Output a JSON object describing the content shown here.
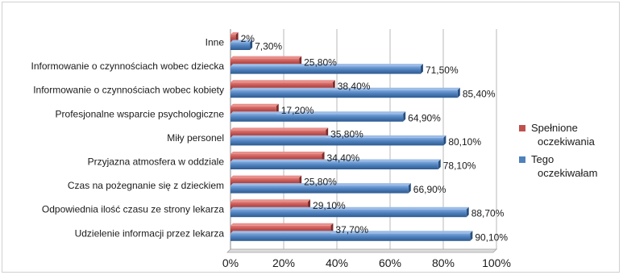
{
  "chart_data": {
    "type": "bar",
    "orientation": "horizontal",
    "categories": [
      "Inne",
      "Informowanie o czynnościach wobec dziecka",
      "Informowanie o czynnościach wobec kobiety",
      "Profesjonalne wsparcie psychologiczne",
      "Miły personel",
      "Przyjazna atmosfera w oddziale",
      "Czas na pożegnanie się z dzieckiem",
      "Odpowiednia ilość czasu ze strony lekarza",
      "Udzielenie informacji przez lekarza"
    ],
    "series": [
      {
        "name": "Spełnione oczekiwania",
        "legend_lines": [
          "Spełnione",
          "oczekiwania"
        ],
        "color": "#c0504d",
        "values": [
          2,
          25.8,
          38.4,
          17.2,
          35.8,
          34.4,
          25.8,
          29.1,
          37.7
        ],
        "labels": [
          "2%",
          "25,80%",
          "38,40%",
          "17,20%",
          "35,80%",
          "34,40%",
          "25,80%",
          "29,10%",
          "37,70%"
        ]
      },
      {
        "name": "Tego oczekiwałam",
        "legend_lines": [
          "Tego",
          "oczekiwałam"
        ],
        "color": "#4f81bd",
        "values": [
          7.3,
          71.5,
          85.4,
          64.9,
          80.1,
          78.1,
          66.9,
          88.7,
          90.1
        ],
        "labels": [
          "7,30%",
          "71,50%",
          "85,40%",
          "64,90%",
          "80,10%",
          "78,10%",
          "66,90%",
          "88,70%",
          "90,10%"
        ]
      }
    ],
    "xlim": [
      0,
      100
    ],
    "xticks": [
      "0%",
      "20%",
      "40%",
      "60%",
      "80%",
      "100%"
    ],
    "grid": true,
    "legend_position": "right",
    "title": "",
    "xlabel": "",
    "ylabel": ""
  }
}
